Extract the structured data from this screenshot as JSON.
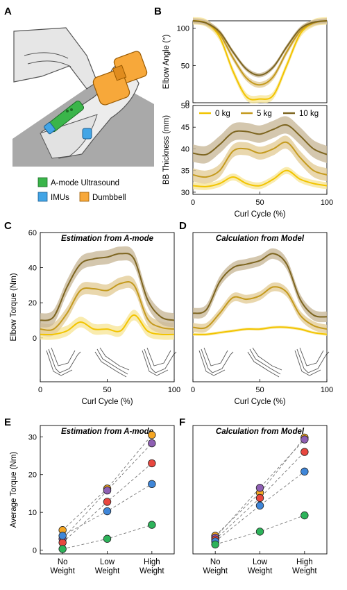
{
  "colors": {
    "c0": "#f2c400",
    "c5": "#c49a1e",
    "c10": "#7d6520",
    "s0": "#f8e69a",
    "s5": "#e3cd99",
    "s10": "#c9b99a",
    "subjects": [
      "#f5a623",
      "#8e5fb3",
      "#e8473f",
      "#3f86d8",
      "#2db35a"
    ]
  },
  "panel_labels": {
    "A": "A",
    "B": "B",
    "C": "C",
    "D": "D",
    "E": "E",
    "F": "F"
  },
  "panel_a": {
    "legend": [
      {
        "label": "A-mode Ultrasound",
        "color": "#3ab54a"
      },
      {
        "label": "IMUs",
        "color": "#42a5e6"
      },
      {
        "label": "Dumbbell",
        "color": "#f7a83a"
      }
    ]
  },
  "chart_data": [
    {
      "id": "B-top",
      "type": "line",
      "ylabel": "Elbow Angle (°)",
      "ylim": [
        0,
        110
      ],
      "yticks": [
        0,
        50,
        100
      ],
      "xlim": [
        0,
        100
      ],
      "series": [
        {
          "name": "0 kg",
          "x": [
            0,
            10,
            20,
            30,
            40,
            50,
            60,
            70,
            80,
            90,
            100
          ],
          "y": [
            110,
            107,
            88,
            42,
            8,
            5,
            10,
            50,
            92,
            107,
            110
          ],
          "spread": 5
        },
        {
          "name": "5 kg",
          "x": [
            0,
            10,
            20,
            30,
            40,
            50,
            60,
            70,
            80,
            90,
            100
          ],
          "y": [
            110,
            107,
            92,
            60,
            33,
            24,
            35,
            68,
            96,
            107,
            110
          ],
          "spread": 4
        },
        {
          "name": "10 kg",
          "x": [
            0,
            10,
            20,
            30,
            40,
            50,
            60,
            70,
            80,
            90,
            100
          ],
          "y": [
            110,
            107,
            95,
            68,
            45,
            37,
            48,
            75,
            99,
            108,
            110
          ],
          "spread": 3
        }
      ]
    },
    {
      "id": "B-bottom",
      "type": "line",
      "ylabel": "BB Thickness (mm)",
      "xlabel": "Curl Cycle (%)",
      "ylim": [
        29.5,
        50
      ],
      "yticks": [
        30,
        35,
        40,
        45,
        50
      ],
      "xlim": [
        0,
        100
      ],
      "xticks": [
        0,
        50,
        100
      ],
      "series": [
        {
          "name": "0 kg",
          "x": [
            0,
            10,
            20,
            30,
            40,
            50,
            60,
            70,
            80,
            90,
            100
          ],
          "y": [
            31.5,
            31.3,
            32,
            33.5,
            32,
            31.5,
            33,
            35,
            33,
            32,
            31.5
          ],
          "spread": 0.8
        },
        {
          "name": "5 kg",
          "x": [
            0,
            10,
            20,
            30,
            40,
            50,
            60,
            70,
            80,
            90,
            100
          ],
          "y": [
            34,
            33.5,
            35,
            39.5,
            40,
            39,
            40,
            41.5,
            38,
            35,
            34
          ],
          "spread": 1.5
        },
        {
          "name": "10 kg",
          "x": [
            0,
            10,
            20,
            30,
            40,
            50,
            60,
            70,
            80,
            90,
            100
          ],
          "y": [
            39,
            38.7,
            41,
            43.8,
            44,
            43.4,
            44.5,
            45.5,
            43,
            40,
            38.7
          ],
          "spread": 2
        }
      ]
    },
    {
      "id": "C",
      "type": "line",
      "title": "Estimation from A-mode",
      "ylabel": "Elbow Torque (Nm)",
      "xlabel": "Curl Cycle (%)",
      "ylim": [
        -25,
        60
      ],
      "yticks": [
        0,
        20,
        40,
        60
      ],
      "xlim": [
        0,
        100
      ],
      "xticks": [
        0,
        50,
        100
      ],
      "series": [
        {
          "name": "0 kg",
          "x": [
            0,
            10,
            20,
            30,
            40,
            50,
            60,
            70,
            80,
            90,
            100
          ],
          "y": [
            2,
            2,
            4,
            9,
            5,
            5,
            4,
            13,
            4,
            2,
            2
          ],
          "spread": 3
        },
        {
          "name": "5 kg",
          "x": [
            0,
            10,
            20,
            30,
            40,
            50,
            60,
            70,
            80,
            90,
            100
          ],
          "y": [
            5,
            5,
            14,
            27,
            28,
            27,
            31,
            30,
            11,
            6,
            5
          ],
          "spread": 3.5
        },
        {
          "name": "10 kg",
          "x": [
            0,
            10,
            20,
            30,
            40,
            50,
            60,
            70,
            80,
            90,
            100
          ],
          "y": [
            10,
            12,
            29,
            42,
            45,
            46,
            48,
            45,
            22,
            12,
            10
          ],
          "spread": 4
        }
      ]
    },
    {
      "id": "D",
      "type": "line",
      "title": "Calculation from Model",
      "xlabel": "Curl Cycle (%)",
      "ylim": [
        -25,
        60
      ],
      "xlim": [
        0,
        100
      ],
      "xticks": [
        0,
        50,
        100
      ],
      "series": [
        {
          "name": "0 kg",
          "x": [
            0,
            10,
            20,
            30,
            40,
            50,
            60,
            70,
            80,
            90,
            100
          ],
          "y": [
            2,
            2,
            3,
            4,
            5,
            5,
            6,
            6,
            5,
            3,
            2
          ],
          "spread": 0.8
        },
        {
          "name": "5 kg",
          "x": [
            0,
            10,
            20,
            30,
            40,
            50,
            60,
            70,
            80,
            90,
            100
          ],
          "y": [
            6,
            6,
            14,
            23,
            22,
            24,
            29,
            26,
            13,
            7,
            5
          ],
          "spread": 2.5
        },
        {
          "name": "10 kg",
          "x": [
            0,
            10,
            20,
            30,
            40,
            50,
            60,
            70,
            80,
            90,
            100
          ],
          "y": [
            14,
            16,
            32,
            40,
            42,
            44,
            48,
            42,
            22,
            13,
            12
          ],
          "spread": 3
        }
      ]
    },
    {
      "id": "E",
      "type": "scatter",
      "title": "Estimation from A-mode",
      "ylabel": "Average Torque (Nm)",
      "ylim": [
        -1,
        33
      ],
      "yticks": [
        0,
        10,
        20,
        30
      ],
      "categories": [
        "No\nWeight",
        "Low\nWeight",
        "High\nWeight"
      ],
      "series": [
        {
          "values": [
            5.3,
            16.3,
            30.5
          ]
        },
        {
          "values": [
            3.0,
            15.8,
            28.3
          ]
        },
        {
          "values": [
            2.0,
            12.8,
            23.0
          ]
        },
        {
          "values": [
            3.8,
            10.3,
            17.5
          ]
        },
        {
          "values": [
            0.3,
            3.0,
            6.7
          ]
        }
      ]
    },
    {
      "id": "F",
      "type": "scatter",
      "title": "Calculation from Model",
      "ylim": [
        -1,
        33
      ],
      "categories": [
        "No\nWeight",
        "Low\nWeight",
        "High\nWeight"
      ],
      "series": [
        {
          "values": [
            3.8,
            15.2,
            29.8
          ]
        },
        {
          "values": [
            3.3,
            16.5,
            29.3
          ]
        },
        {
          "values": [
            2.8,
            13.8,
            26.0
          ]
        },
        {
          "values": [
            2.3,
            11.8,
            20.8
          ]
        },
        {
          "values": [
            1.5,
            4.9,
            9.2
          ]
        }
      ]
    }
  ]
}
